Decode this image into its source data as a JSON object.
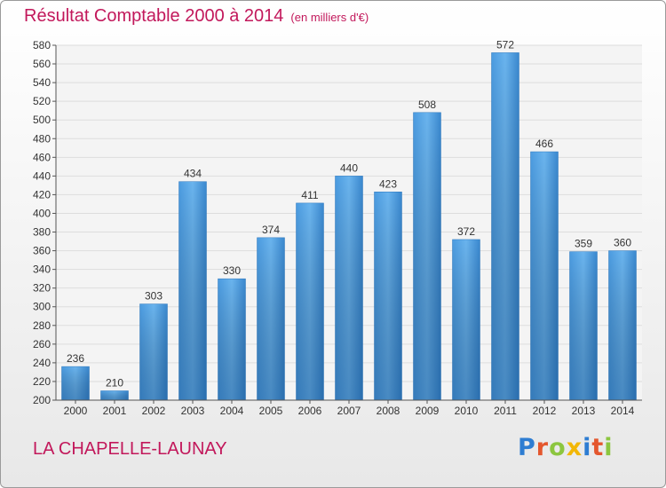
{
  "page": {
    "title": "Résultat Comptable 2000 à 2014",
    "unit_note": "(en milliers d'€)",
    "commune": "LA CHAPELLE-LAUNAY",
    "logo": "Proxiti",
    "logo_colors": [
      "#2e7dd2",
      "#e4572e",
      "#8cc63f",
      "#f2b705",
      "#2e7dd2",
      "#e4572e",
      "#8cc63f"
    ]
  },
  "chart_data": {
    "type": "bar",
    "title": "Résultat Comptable 2000 à 2014",
    "subtitle": "(en milliers d'€)",
    "categories": [
      "2000",
      "2001",
      "2002",
      "2003",
      "2004",
      "2005",
      "2006",
      "2007",
      "2008",
      "2009",
      "2010",
      "2011",
      "2012",
      "2013",
      "2014"
    ],
    "values": [
      236,
      210,
      303,
      434,
      330,
      374,
      411,
      440,
      423,
      508,
      372,
      572,
      466,
      359,
      360
    ],
    "ylim": [
      200,
      580
    ],
    "ytick_step": 20,
    "grid": true,
    "bar_color": "#3d8fd6"
  }
}
